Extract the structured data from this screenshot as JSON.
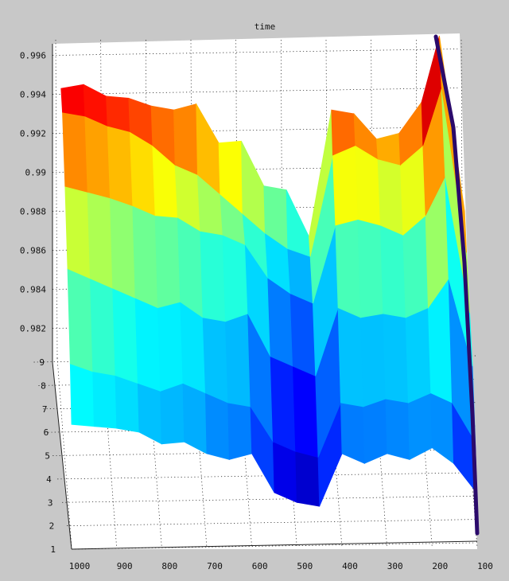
{
  "chart_data": {
    "type": "surface",
    "title": "time",
    "xlabel": "",
    "ylabel": "",
    "zlabel": "",
    "grid": true,
    "colormap": "jet",
    "x": [
      1000,
      950,
      900,
      850,
      800,
      750,
      700,
      650,
      600,
      550,
      500,
      450,
      400,
      350,
      300,
      250,
      200,
      150,
      100
    ],
    "x_ticks": [
      1000,
      900,
      800,
      700,
      600,
      500,
      400,
      300,
      200,
      100
    ],
    "y_ticks": [
      1,
      2,
      3,
      4,
      5,
      6,
      7,
      8,
      9
    ],
    "z_ticks": [
      0.982,
      0.984,
      0.986,
      0.988,
      0.99,
      0.992,
      0.994,
      0.996
    ],
    "z_tick_labels": [
      "0.982",
      "0.984",
      "0.986",
      "0.988",
      "0.99",
      "0.992",
      "0.994",
      "0.996"
    ],
    "xlim": [
      100,
      1000
    ],
    "ylim": [
      1,
      9
    ],
    "zlim": [
      0.981,
      0.997
    ],
    "series": [
      {
        "y": 9,
        "values": [
          0.9943,
          0.9945,
          0.9939,
          0.9938,
          0.9934,
          0.9932,
          0.9935,
          0.9915,
          0.9916,
          0.9893,
          0.9891,
          0.9867,
          0.9932,
          0.993,
          0.9917,
          0.992,
          0.9936,
          0.997,
          0.988
        ]
      },
      {
        "y": 8,
        "values": [
          0.9932,
          0.993,
          0.9925,
          0.9922,
          0.9915,
          0.9905,
          0.99,
          0.989,
          0.988,
          0.987,
          0.9862,
          0.9858,
          0.991,
          0.9915,
          0.9908,
          0.9905,
          0.9915,
          0.9945,
          0.986
        ]
      },
      {
        "y": 6,
        "values": [
          0.9905,
          0.9902,
          0.9899,
          0.9895,
          0.989,
          0.9889,
          0.9882,
          0.988,
          0.9875,
          0.9858,
          0.985,
          0.9845,
          0.9885,
          0.9888,
          0.9885,
          0.988,
          0.989,
          0.991,
          0.984
        ]
      },
      {
        "y": 4,
        "values": [
          0.9885,
          0.988,
          0.9875,
          0.987,
          0.9865,
          0.9868,
          0.986,
          0.9858,
          0.9862,
          0.984,
          0.9835,
          0.983,
          0.9865,
          0.986,
          0.9862,
          0.986,
          0.9865,
          0.988,
          0.9835
        ]
      },
      {
        "y": 2,
        "values": [
          0.987,
          0.9866,
          0.9864,
          0.986,
          0.9856,
          0.986,
          0.9855,
          0.985,
          0.9848,
          0.983,
          0.9825,
          0.9822,
          0.985,
          0.9848,
          0.9852,
          0.985,
          0.9855,
          0.985,
          0.983
        ]
      },
      {
        "y": 1,
        "values": [
          0.986,
          0.9859,
          0.9858,
          0.9856,
          0.985,
          0.9851,
          0.9845,
          0.9842,
          0.9845,
          0.9825,
          0.982,
          0.9818,
          0.9845,
          0.984,
          0.9845,
          0.9842,
          0.9848,
          0.984,
          0.9825
        ]
      }
    ]
  }
}
